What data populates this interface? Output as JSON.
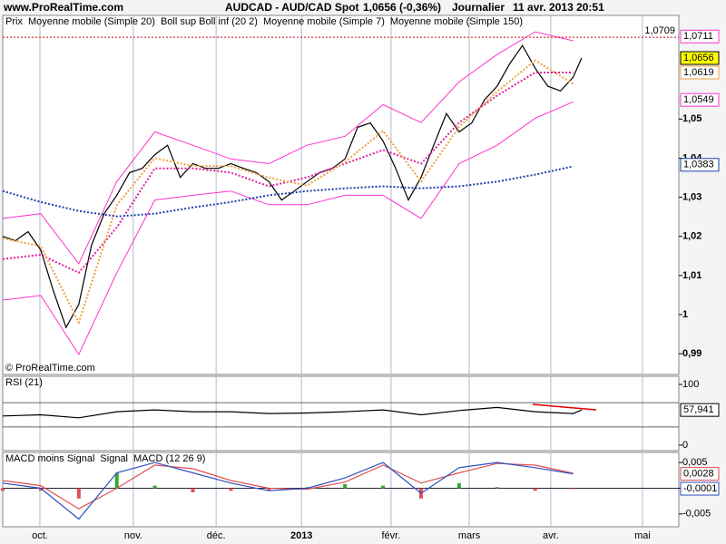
{
  "header": {
    "site": "www.ProRealTime.com",
    "instrument": "AUDCAD - AUD/CAD Spot",
    "quote": "1,0656 (-0,36%)",
    "period": "Journalier",
    "datetime": "11 avr. 2013 20:51"
  },
  "chart_data": [
    {
      "type": "line",
      "legend_label": "Prix",
      "credit": "© ProRealTime.com",
      "xlim": [
        0,
        160
      ],
      "xticks": [
        {
          "value": 8.8,
          "label": "oct."
        },
        {
          "value": 30.9,
          "label": "nov."
        },
        {
          "value": 50.5,
          "label": "déc."
        },
        {
          "value": 70.7,
          "label": "2013"
        },
        {
          "value": 91.9,
          "label": "févr."
        },
        {
          "value": 110.4,
          "label": "mars"
        },
        {
          "value": 129.7,
          "label": "avr."
        },
        {
          "value": 151.4,
          "label": "mai"
        }
      ],
      "ylim": [
        0.9847,
        1.0765
      ],
      "yticks": [
        {
          "value": 0.99,
          "label": "0,99"
        },
        1,
        {
          "value": 1.01,
          "label": "1,01"
        },
        {
          "value": 1.02,
          "label": "1,02"
        },
        {
          "value": 1.03,
          "label": "1,03"
        },
        {
          "value": 1.04,
          "label": "1,04"
        },
        {
          "value": 1.05,
          "label": "1,05"
        }
      ],
      "x": [
        0,
        9,
        18,
        27,
        36,
        45,
        54,
        63,
        72,
        81,
        90,
        99,
        108,
        117,
        126,
        135
      ],
      "series": [
        {
          "name": "Prix",
          "color": "#000000",
          "style": "solid",
          "x": [
            0,
            3,
            6,
            9,
            12,
            15,
            18,
            21,
            24,
            27,
            30,
            33,
            36,
            39,
            42,
            45,
            48,
            51,
            54,
            57,
            60,
            63,
            66,
            69,
            72,
            75,
            78,
            81,
            84,
            87,
            90,
            93,
            96,
            99,
            102,
            105,
            108,
            111,
            114,
            117,
            120,
            123,
            126,
            129,
            132,
            135,
            137
          ],
          "values": [
            1.02,
            1.0189,
            1.0212,
            1.0165,
            1.006,
            0.9967,
            1.0026,
            1.0177,
            1.0258,
            1.0305,
            1.0363,
            1.0374,
            1.0409,
            1.0433,
            1.0351,
            1.0386,
            1.0374,
            1.0374,
            1.0386,
            1.0374,
            1.0363,
            1.034,
            1.0293,
            1.0316,
            1.034,
            1.0363,
            1.0374,
            1.0398,
            1.0479,
            1.049,
            1.0444,
            1.0374,
            1.0293,
            1.0351,
            1.0433,
            1.0514,
            1.0467,
            1.049,
            1.0549,
            1.0584,
            1.0642,
            1.0688,
            1.063,
            1.0584,
            1.0572,
            1.0607,
            1.0656
          ]
        },
        {
          "name": "Moyenne mobile (Simple 20)",
          "color": "#e0209f",
          "style": "dotted",
          "values": [
            1.0142,
            1.0153,
            1.0107,
            1.0223,
            1.0374,
            1.0374,
            1.0363,
            1.0328,
            1.0351,
            1.0386,
            1.0421,
            1.0386,
            1.0491,
            1.056,
            1.0619,
            1.0619
          ]
        },
        {
          "name": "Moyenne mobile (Simple 7)",
          "color": "#f0a040",
          "style": "dotted",
          "values": [
            1.0195,
            1.0175,
            0.998,
            1.028,
            1.04,
            1.038,
            1.038,
            1.035,
            1.033,
            1.039,
            1.047,
            1.034,
            1.048,
            1.057,
            1.065,
            1.059
          ]
        },
        {
          "name": "Moyenne mobile (Simple 150)",
          "color": "#1a3fa8",
          "style": "dotted",
          "values": [
            1.0316,
            1.0288,
            1.0265,
            1.0251,
            1.0258,
            1.0274,
            1.0288,
            1.0305,
            1.0316,
            1.0323,
            1.0328,
            1.0323,
            1.0328,
            1.034,
            1.0358,
            1.0379
          ]
        }
      ],
      "bands": {
        "name": "Boll sup Boll inf (20 2)",
        "color": "#ff33cc",
        "upper": [
          1.0246,
          1.0258,
          1.013,
          1.034,
          1.0467,
          1.0433,
          1.0398,
          1.0386,
          1.0433,
          1.0456,
          1.0537,
          1.0491,
          1.0595,
          1.0665,
          1.0723,
          1.07
        ],
        "lower": [
          1.0037,
          1.0049,
          0.9898,
          1.0107,
          1.0293,
          1.0305,
          1.0316,
          1.0281,
          1.0281,
          1.0305,
          1.0305,
          1.0246,
          1.0386,
          1.0433,
          1.0502,
          1.0544
        ]
      },
      "hline": {
        "value": 1.0709,
        "label": "1,0709",
        "color": "#cc0000"
      },
      "last_labels": [
        {
          "value": 1.0711,
          "label": "1,0711",
          "color": "#ff33cc"
        },
        {
          "value": 1.0656,
          "label": "1,0656",
          "color": "#000000",
          "fill": "#ffff00"
        },
        {
          "value": 1.0619,
          "label": "1,0619",
          "color": "#f0a040"
        },
        {
          "value": 1.0549,
          "label": "1,0549",
          "color": "#ff33cc"
        },
        {
          "value": 1.0383,
          "label": "1,0383",
          "color": "#1a3fa8"
        }
      ]
    },
    {
      "type": "line",
      "ylim": [
        -9,
        113.4
      ],
      "yticks": [
        0,
        100
      ],
      "levels": [
        70,
        30
      ],
      "x": [
        0,
        9,
        18,
        27,
        36,
        45,
        54,
        63,
        72,
        81,
        90,
        99,
        108,
        117,
        126,
        135,
        137
      ],
      "series": [
        {
          "name": "RSI (21)",
          "color": "#000000",
          "style": "solid",
          "values": [
            48,
            50,
            45,
            55,
            58,
            55,
            55,
            52,
            53,
            55,
            58,
            50,
            57,
            62,
            55,
            52,
            57.941
          ]
        }
      ],
      "last_labels": [
        {
          "value": 57.941,
          "label": "57,941",
          "color": "#000000"
        }
      ]
    },
    {
      "type": "macd",
      "ylim": [
        -0.0075,
        0.00696
      ],
      "yticks": [
        {
          "value": 0.005,
          "label": "0,005"
        },
        0,
        {
          "value": -0.005,
          "label": "-0,005"
        }
      ],
      "x": [
        0,
        9,
        18,
        27,
        36,
        45,
        54,
        63,
        72,
        81,
        90,
        99,
        108,
        117,
        126,
        135
      ],
      "histogram": {
        "name": "MACD moins Signal",
        "color": "#33aa33",
        "negative_color": "#e05050",
        "values": [
          -0.0005,
          -0.0005,
          -0.002,
          0.003,
          0.0005,
          -0.0008,
          -0.0005,
          -0.0005,
          0.0002,
          0.0008,
          0.0005,
          -0.002,
          0.001,
          0.0002,
          -0.0005,
          -0.0001
        ]
      },
      "series": [
        {
          "name": "Signal",
          "color": "#e05050",
          "style": "solid",
          "values": [
            0.0015,
            0.0005,
            -0.004,
            0.0,
            0.0045,
            0.0038,
            0.0015,
            0.0,
            -0.0002,
            0.0012,
            0.0045,
            0.001,
            0.003,
            0.0048,
            0.0045,
            0.0029
          ]
        },
        {
          "name": "MACD (12 26 9)",
          "color": "#3050c0",
          "style": "solid",
          "values": [
            0.001,
            0.0,
            -0.006,
            0.003,
            0.005,
            0.003,
            0.001,
            -0.0005,
            0.0,
            0.002,
            0.005,
            -0.001,
            0.004,
            0.005,
            0.004,
            0.0028
          ]
        }
      ],
      "last_labels": [
        {
          "value": 0.0028,
          "label": "0,0028",
          "color": "#e05050"
        },
        {
          "value": -0.0001,
          "label": "-0,0001",
          "color": "#3050c0"
        }
      ]
    }
  ]
}
